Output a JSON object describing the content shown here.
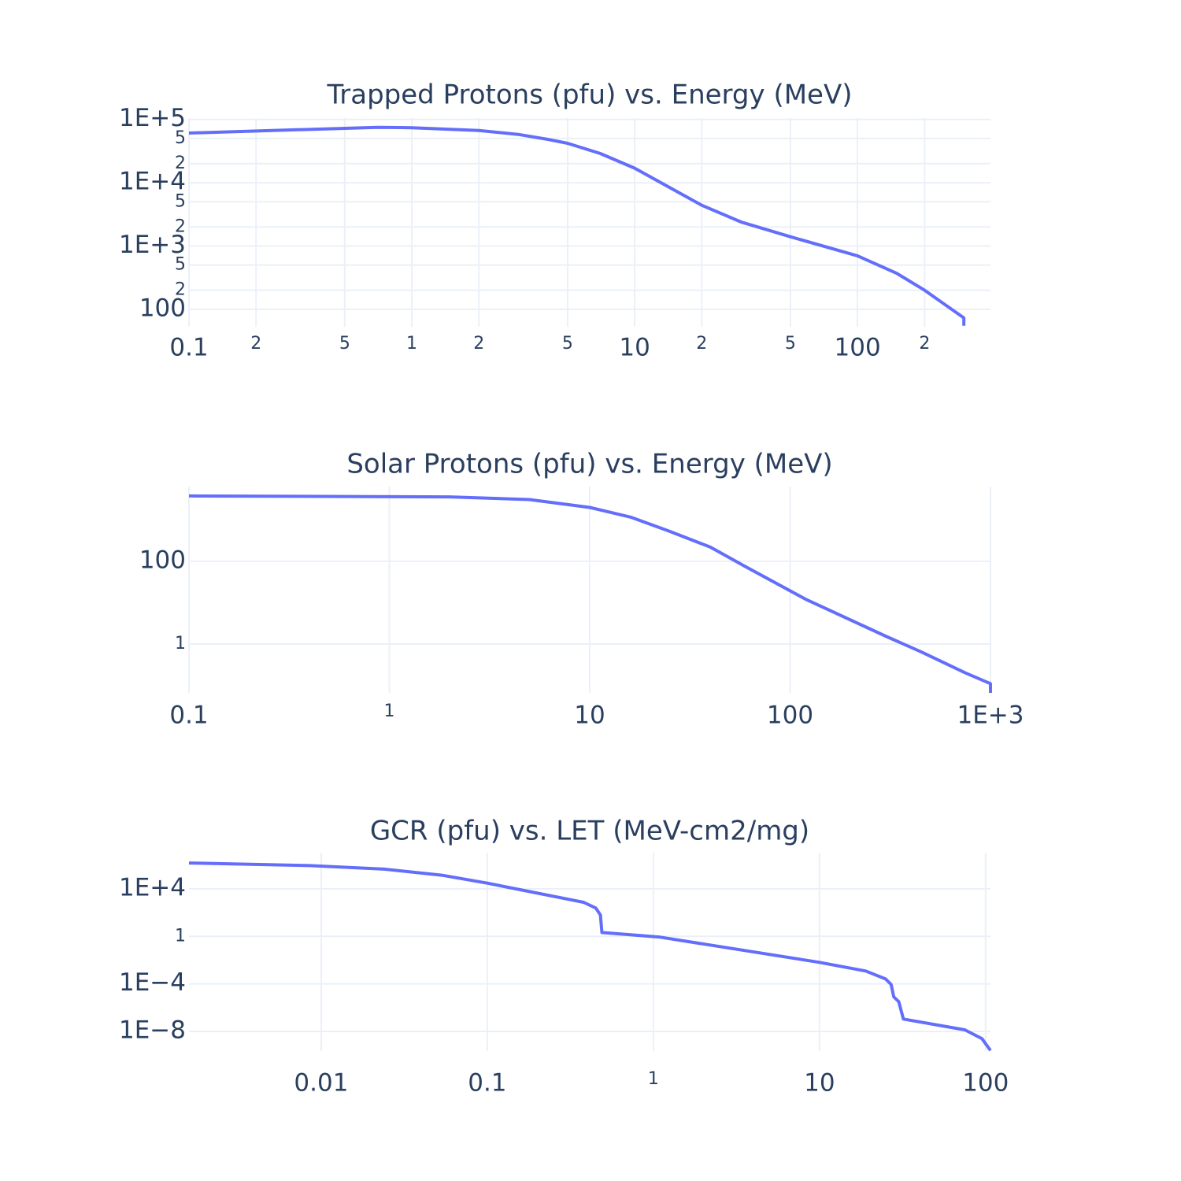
{
  "chart_data": [
    {
      "type": "line",
      "title": "Trapped Protons (pfu) vs. Energy (MeV)",
      "log_x": true,
      "log_y": true,
      "grid": true,
      "color": "#636efa",
      "x": [
        0.1,
        0.7,
        1,
        2,
        3,
        4,
        5,
        7,
        10,
        20,
        30,
        50,
        100,
        150,
        200,
        300,
        300
      ],
      "values": [
        61000,
        75000,
        74000,
        67000,
        58000,
        49000,
        42000,
        29000,
        17000,
        4400,
        2400,
        1400,
        700,
        370,
        200,
        73,
        55
      ],
      "xlim": [
        0.1,
        395
      ],
      "ylim": [
        53,
        105000
      ],
      "xticks": [
        0.1,
        {
          "value": 0.2,
          "label": "2"
        },
        {
          "value": 0.5,
          "label": "5"
        },
        1,
        {
          "value": 2,
          "label": "2"
        },
        {
          "value": 5,
          "label": "5"
        },
        10,
        {
          "value": 20,
          "label": "2"
        },
        {
          "value": 50,
          "label": "5"
        },
        100,
        {
          "value": 200,
          "label": "2"
        }
      ],
      "yticks": [
        100,
        {
          "value": 200,
          "label": "2"
        },
        {
          "value": 500,
          "label": "5"
        },
        {
          "value": 1000,
          "label": "1E+3"
        },
        {
          "value": 2000,
          "label": "2"
        },
        {
          "value": 5000,
          "label": "5"
        },
        {
          "value": 10000,
          "label": "1E+4"
        },
        {
          "value": 20000,
          "label": "2"
        },
        {
          "value": 50000,
          "label": "5"
        },
        {
          "value": 100000,
          "label": "1E+5"
        }
      ]
    },
    {
      "type": "line",
      "title": "Solar Protons (pfu) vs. Energy (MeV)",
      "log_x": true,
      "log_y": true,
      "grid": true,
      "color": "#636efa",
      "x": [
        0.1,
        2,
        5,
        10,
        16,
        25,
        40,
        60,
        120,
        300,
        450,
        750,
        1000,
        1000
      ],
      "values": [
        3800,
        3600,
        3100,
        2000,
        1170,
        530,
        220,
        74,
        12,
        1.55,
        0.65,
        0.2,
        0.11,
        0.066
      ],
      "xlim": [
        0.1,
        1000
      ],
      "ylim": [
        0.066,
        6400
      ],
      "xticks": [
        0.1,
        1,
        10,
        100,
        {
          "value": 1000,
          "label": "1E+3"
        }
      ],
      "yticks": [
        1,
        100
      ]
    },
    {
      "type": "line",
      "title": "GCR (pfu) vs. LET (MeV-cm2/mg)",
      "log_x": true,
      "log_y": true,
      "grid": true,
      "color": "#636efa",
      "x": [
        0.0016,
        0.0085,
        0.024,
        0.054,
        0.1,
        0.38,
        0.45,
        0.48,
        0.49,
        1.1,
        10,
        19,
        25,
        27,
        28,
        30,
        32,
        75,
        95,
        107
      ],
      "values": [
        1500000,
        900000,
        450000,
        135000,
        30000,
        740,
        240,
        62,
        2.1,
        0.85,
        0.0065,
        0.0012,
        0.00026,
        9e-05,
        8e-06,
        3.2e-06,
        1.1e-07,
        1.35e-08,
        2.5e-09,
        2.5e-10
      ],
      "xlim": [
        0.0016,
        107
      ],
      "ylim": [
        2.2e-10,
        11000000
      ],
      "xticks": [
        0.01,
        0.1,
        1,
        10,
        100
      ],
      "yticks": [
        {
          "value": 0.0001,
          "label": "1E−4"
        },
        {
          "value": 1e-08,
          "label": "1E−8"
        },
        1,
        {
          "value": 10000,
          "label": "1E+4"
        }
      ]
    }
  ]
}
